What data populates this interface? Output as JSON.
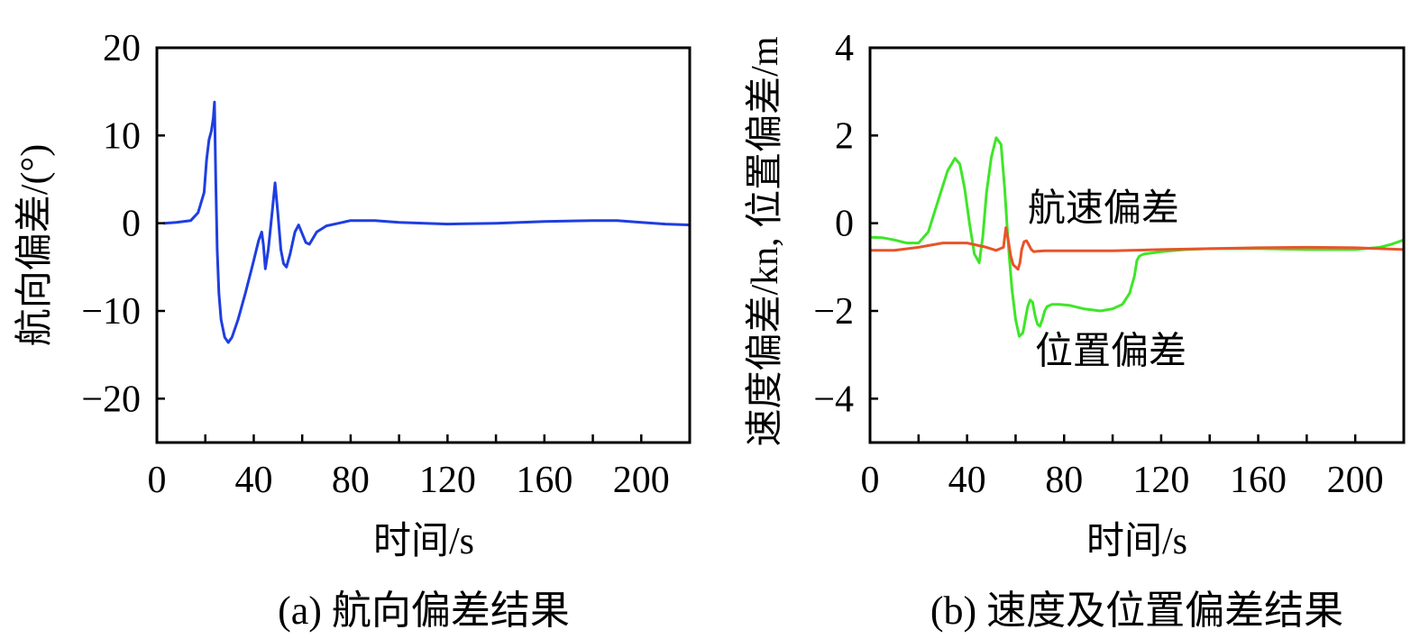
{
  "chart_data": [
    {
      "type": "line",
      "title": "",
      "caption": "(a) 航向偏差结果",
      "xlabel": "时间/s",
      "ylabel": "航向偏差/(°)",
      "xlim": [
        0,
        220
      ],
      "ylim": [
        -25,
        20
      ],
      "xticks": [
        0,
        40,
        80,
        120,
        160,
        200
      ],
      "xtick_labels": [
        "0",
        "40",
        "80",
        "120",
        "160",
        "200"
      ],
      "xticks_minor": [
        20,
        60,
        100,
        140,
        180,
        220
      ],
      "yticks": [
        -20,
        -10,
        0,
        10,
        20
      ],
      "ytick_labels": [
        "−20",
        "−10",
        "0",
        "10",
        "20"
      ],
      "grid": false,
      "series": [
        {
          "name": "航向偏差",
          "color": "#1f3ee0",
          "x": [
            3,
            8,
            14,
            17,
            19.5,
            20.5,
            21.5,
            22.5,
            23.3,
            23.8,
            24.3,
            24.9,
            25.6,
            26.5,
            28,
            29.5,
            31,
            33.5,
            36.5,
            39.5,
            42,
            43.3,
            44,
            44.8,
            46,
            47.5,
            48.8,
            50,
            51.2,
            52.3,
            53.5,
            55,
            57,
            58.5,
            60,
            61.5,
            63,
            66,
            70,
            75,
            80,
            90,
            100,
            120,
            140,
            160,
            180,
            190,
            200,
            210,
            220
          ],
          "y": [
            0,
            0.1,
            0.3,
            1.2,
            3.5,
            7.2,
            9.5,
            10.5,
            12.0,
            13.8,
            5.0,
            -3.0,
            -8.0,
            -11.0,
            -13.0,
            -13.6,
            -13.0,
            -11.0,
            -8.0,
            -4.8,
            -2.0,
            -1.0,
            -2.5,
            -5.2,
            -3.0,
            1.0,
            4.6,
            1.0,
            -3.0,
            -4.6,
            -5.0,
            -3.5,
            -1.0,
            -0.2,
            -1.2,
            -2.2,
            -2.4,
            -1.0,
            -0.3,
            0,
            0.3,
            0.3,
            0.1,
            -0.1,
            0,
            0.2,
            0.3,
            0.3,
            0.1,
            -0.1,
            -0.2
          ]
        }
      ]
    },
    {
      "type": "line",
      "title": "",
      "caption": "(b) 速度及位置偏差结果",
      "xlabel": "时间/s",
      "ylabel": "速度偏差/kn, 位置偏差/m",
      "xlim": [
        0,
        220
      ],
      "ylim": [
        -5,
        4
      ],
      "xticks": [
        0,
        40,
        80,
        120,
        160,
        200
      ],
      "xtick_labels": [
        "0",
        "40",
        "80",
        "120",
        "160",
        "200"
      ],
      "xticks_minor": [
        20,
        60,
        100,
        140,
        180,
        220
      ],
      "yticks": [
        -4,
        -2,
        0,
        2,
        4
      ],
      "ytick_labels": [
        "−4",
        "−2",
        "0",
        "2",
        "4"
      ],
      "grid": false,
      "annotations": [
        {
          "text": "航速偏差",
          "x": 65,
          "y": 0.05
        },
        {
          "text": "位置偏差",
          "x": 68,
          "y": -3.2
        }
      ],
      "series": [
        {
          "name": "位置偏差",
          "color": "#3ee627",
          "x": [
            0,
            5,
            10,
            15,
            20,
            24,
            28,
            32,
            35,
            37,
            39,
            41,
            43,
            45,
            46.5,
            48,
            50,
            52,
            54,
            55.5,
            57,
            58.5,
            60,
            61.5,
            63,
            64,
            65,
            66,
            67,
            68,
            69,
            70,
            71,
            72,
            73,
            75,
            78,
            82,
            88,
            95,
            100,
            104,
            107,
            109,
            110,
            111,
            113,
            116,
            120,
            130,
            140,
            160,
            180,
            200,
            210,
            215,
            220
          ],
          "y": [
            -0.32,
            -0.33,
            -0.38,
            -0.45,
            -0.45,
            -0.2,
            0.5,
            1.2,
            1.48,
            1.35,
            0.8,
            0.0,
            -0.7,
            -0.9,
            -0.3,
            0.7,
            1.5,
            1.95,
            1.8,
            0.8,
            -0.5,
            -1.5,
            -2.2,
            -2.58,
            -2.5,
            -2.2,
            -1.9,
            -1.75,
            -1.8,
            -2.1,
            -2.3,
            -2.35,
            -2.2,
            -2.0,
            -1.9,
            -1.85,
            -1.85,
            -1.87,
            -1.95,
            -2.0,
            -1.95,
            -1.85,
            -1.6,
            -1.2,
            -0.85,
            -0.75,
            -0.7,
            -0.68,
            -0.65,
            -0.6,
            -0.58,
            -0.58,
            -0.6,
            -0.6,
            -0.55,
            -0.48,
            -0.38
          ]
        },
        {
          "name": "航速偏差",
          "color": "#e8532a",
          "x": [
            0,
            10,
            20,
            30,
            40,
            48,
            52,
            55,
            56,
            57,
            58,
            59,
            60,
            61,
            61.8,
            62.5,
            63.5,
            64.5,
            65.5,
            66.5,
            67.5,
            69,
            72,
            80,
            100,
            120,
            140,
            160,
            180,
            200,
            220
          ],
          "y": [
            -0.62,
            -0.62,
            -0.55,
            -0.45,
            -0.45,
            -0.55,
            -0.62,
            -0.55,
            -0.1,
            -0.4,
            -0.75,
            -0.95,
            -1.0,
            -1.05,
            -0.9,
            -0.6,
            -0.42,
            -0.4,
            -0.5,
            -0.6,
            -0.65,
            -0.64,
            -0.63,
            -0.63,
            -0.63,
            -0.6,
            -0.58,
            -0.56,
            -0.55,
            -0.56,
            -0.6
          ]
        }
      ]
    }
  ]
}
